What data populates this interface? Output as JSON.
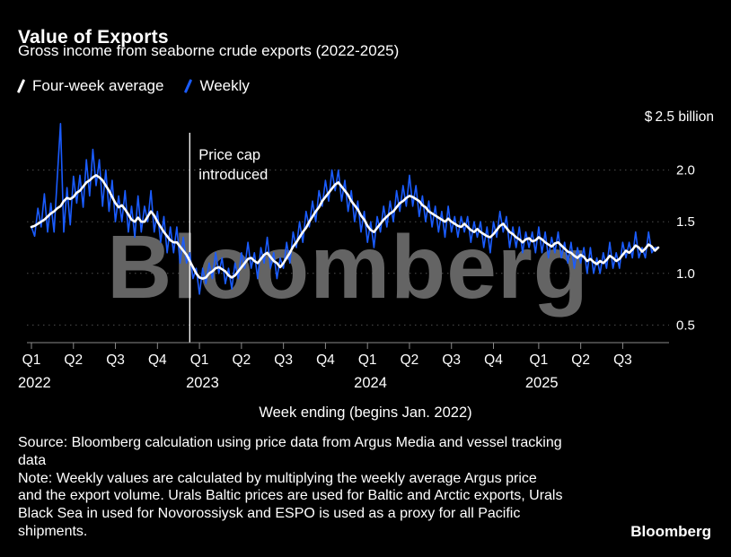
{
  "header": {
    "title": "Value of Exports",
    "subtitle": "Gross income from seaborne crude exports (2022-2025)"
  },
  "legend": [
    {
      "label": "Four-week average",
      "color": "#ffffff"
    },
    {
      "label": "Weekly",
      "color": "#1a5cff"
    }
  ],
  "chart_data": {
    "type": "line",
    "title": "Value of Exports",
    "subtitle": "Gross income from seaborne crude exports (2022-2025)",
    "unit_label": "$ 2.5 billion",
    "xlabel": "Week ending (begins Jan. 2022)",
    "ylim": [
      0.33,
      2.5
    ],
    "y_ticks": [
      0.5,
      1.0,
      1.5,
      2.0
    ],
    "grid": "dotted-horizontal",
    "legend_position": "top-left",
    "watermark": "Bloomberg",
    "annotation": {
      "week": 49,
      "lines": [
        "Price cap",
        "introduced"
      ]
    },
    "x_ticks": [
      {
        "label": "Q1",
        "week": 0,
        "year": "2022"
      },
      {
        "label": "Q2",
        "week": 13
      },
      {
        "label": "Q3",
        "week": 26
      },
      {
        "label": "Q4",
        "week": 39
      },
      {
        "label": "Q1",
        "week": 52,
        "year": "2023"
      },
      {
        "label": "Q2",
        "week": 65
      },
      {
        "label": "Q3",
        "week": 78
      },
      {
        "label": "Q4",
        "week": 91
      },
      {
        "label": "Q1",
        "week": 104,
        "year": "2024"
      },
      {
        "label": "Q2",
        "week": 117
      },
      {
        "label": "Q3",
        "week": 130
      },
      {
        "label": "Q4",
        "week": 143
      },
      {
        "label": "Q1",
        "week": 157,
        "year": "2025"
      },
      {
        "label": "Q2",
        "week": 170
      },
      {
        "label": "Q3",
        "week": 183
      }
    ],
    "series": [
      {
        "name": "Weekly",
        "color": "#1a5cff",
        "width": 1.6,
        "values": [
          1.45,
          1.36,
          1.63,
          1.45,
          1.77,
          1.4,
          1.68,
          1.4,
          1.93,
          2.45,
          1.4,
          1.83,
          1.47,
          1.94,
          1.68,
          1.95,
          1.64,
          2.1,
          1.75,
          2.2,
          1.85,
          2.1,
          1.65,
          2.0,
          1.6,
          1.9,
          1.5,
          1.75,
          1.5,
          1.8,
          1.4,
          1.65,
          1.35,
          1.75,
          1.4,
          1.65,
          1.5,
          1.8,
          1.4,
          1.6,
          1.3,
          1.55,
          1.2,
          1.45,
          1.2,
          1.45,
          1.1,
          1.35,
          1.1,
          1.2,
          0.95,
          1.05,
          0.8,
          1.05,
          0.9,
          1.1,
          0.95,
          1.2,
          1.0,
          1.15,
          0.9,
          1.05,
          0.85,
          1.1,
          0.95,
          1.2,
          1.05,
          1.3,
          1.05,
          1.2,
          0.95,
          1.25,
          1.1,
          1.35,
          1.05,
          1.2,
          0.95,
          1.15,
          1.05,
          1.3,
          1.1,
          1.4,
          1.25,
          1.5,
          1.3,
          1.6,
          1.45,
          1.7,
          1.5,
          1.8,
          1.65,
          1.9,
          1.7,
          2.0,
          1.8,
          2.0,
          1.7,
          1.9,
          1.6,
          1.8,
          1.5,
          1.7,
          1.4,
          1.6,
          1.3,
          1.5,
          1.25,
          1.55,
          1.4,
          1.65,
          1.45,
          1.7,
          1.5,
          1.8,
          1.6,
          1.85,
          1.65,
          1.95,
          1.65,
          1.85,
          1.55,
          1.75,
          1.5,
          1.7,
          1.45,
          1.65,
          1.4,
          1.6,
          1.35,
          1.65,
          1.4,
          1.55,
          1.35,
          1.55,
          1.4,
          1.55,
          1.3,
          1.5,
          1.35,
          1.5,
          1.25,
          1.45,
          1.2,
          1.5,
          1.35,
          1.6,
          1.4,
          1.55,
          1.25,
          1.45,
          1.25,
          1.45,
          1.2,
          1.4,
          1.25,
          1.4,
          1.2,
          1.45,
          1.2,
          1.4,
          1.15,
          1.35,
          1.2,
          1.4,
          1.15,
          1.3,
          1.1,
          1.3,
          1.05,
          1.25,
          1.1,
          1.25,
          1.0,
          1.25,
          1.0,
          1.15,
          1.0,
          1.2,
          1.05,
          1.3,
          1.05,
          1.2,
          1.05,
          1.3,
          1.15,
          1.3,
          1.15,
          1.4,
          1.15,
          1.25,
          1.15,
          1.4,
          1.2,
          1.25,
          1.25
        ]
      },
      {
        "name": "Four-week average",
        "color": "#ffffff",
        "width": 2.6,
        "values": [
          1.45,
          1.46,
          1.48,
          1.5,
          1.52,
          1.55,
          1.58,
          1.6,
          1.63,
          1.65,
          1.7,
          1.73,
          1.72,
          1.74,
          1.78,
          1.8,
          1.84,
          1.88,
          1.9,
          1.93,
          1.95,
          1.93,
          1.9,
          1.85,
          1.8,
          1.74,
          1.68,
          1.64,
          1.66,
          1.62,
          1.57,
          1.52,
          1.5,
          1.54,
          1.5,
          1.5,
          1.55,
          1.6,
          1.56,
          1.5,
          1.45,
          1.4,
          1.36,
          1.32,
          1.3,
          1.3,
          1.26,
          1.22,
          1.18,
          1.12,
          1.06,
          1.0,
          0.96,
          0.95,
          0.96,
          1.0,
          1.02,
          1.05,
          1.06,
          1.04,
          1.02,
          0.98,
          0.96,
          0.98,
          1.02,
          1.06,
          1.1,
          1.14,
          1.15,
          1.12,
          1.1,
          1.14,
          1.18,
          1.2,
          1.16,
          1.12,
          1.1,
          1.06,
          1.1,
          1.15,
          1.2,
          1.26,
          1.3,
          1.35,
          1.4,
          1.44,
          1.5,
          1.55,
          1.6,
          1.64,
          1.7,
          1.74,
          1.78,
          1.82,
          1.86,
          1.88,
          1.84,
          1.8,
          1.76,
          1.7,
          1.66,
          1.62,
          1.56,
          1.52,
          1.46,
          1.42,
          1.4,
          1.44,
          1.48,
          1.52,
          1.55,
          1.58,
          1.6,
          1.64,
          1.68,
          1.7,
          1.73,
          1.75,
          1.74,
          1.72,
          1.7,
          1.66,
          1.64,
          1.6,
          1.58,
          1.56,
          1.54,
          1.52,
          1.5,
          1.53,
          1.5,
          1.48,
          1.46,
          1.45,
          1.48,
          1.45,
          1.42,
          1.4,
          1.43,
          1.4,
          1.38,
          1.36,
          1.35,
          1.38,
          1.42,
          1.46,
          1.48,
          1.44,
          1.4,
          1.38,
          1.35,
          1.33,
          1.3,
          1.33,
          1.34,
          1.31,
          1.32,
          1.35,
          1.33,
          1.3,
          1.28,
          1.26,
          1.29,
          1.3,
          1.27,
          1.24,
          1.21,
          1.2,
          1.17,
          1.15,
          1.18,
          1.16,
          1.12,
          1.14,
          1.11,
          1.09,
          1.12,
          1.1,
          1.13,
          1.17,
          1.15,
          1.12,
          1.14,
          1.18,
          1.22,
          1.2,
          1.23,
          1.27,
          1.25,
          1.21,
          1.24,
          1.28,
          1.26,
          1.22,
          1.25
        ]
      }
    ]
  },
  "footer": {
    "source": "Source: Bloomberg calculation using price data from Argus Media and vessel tracking data",
    "note": "Note: Weekly values are calculated by multiplying the weekly average Argus price and the export volume. Urals Baltic prices are used for Baltic and Arctic exports, Urals Black Sea in used for Novorossiysk and ESPO is used as a proxy for all Pacific shipments.",
    "logo": "Bloomberg"
  }
}
